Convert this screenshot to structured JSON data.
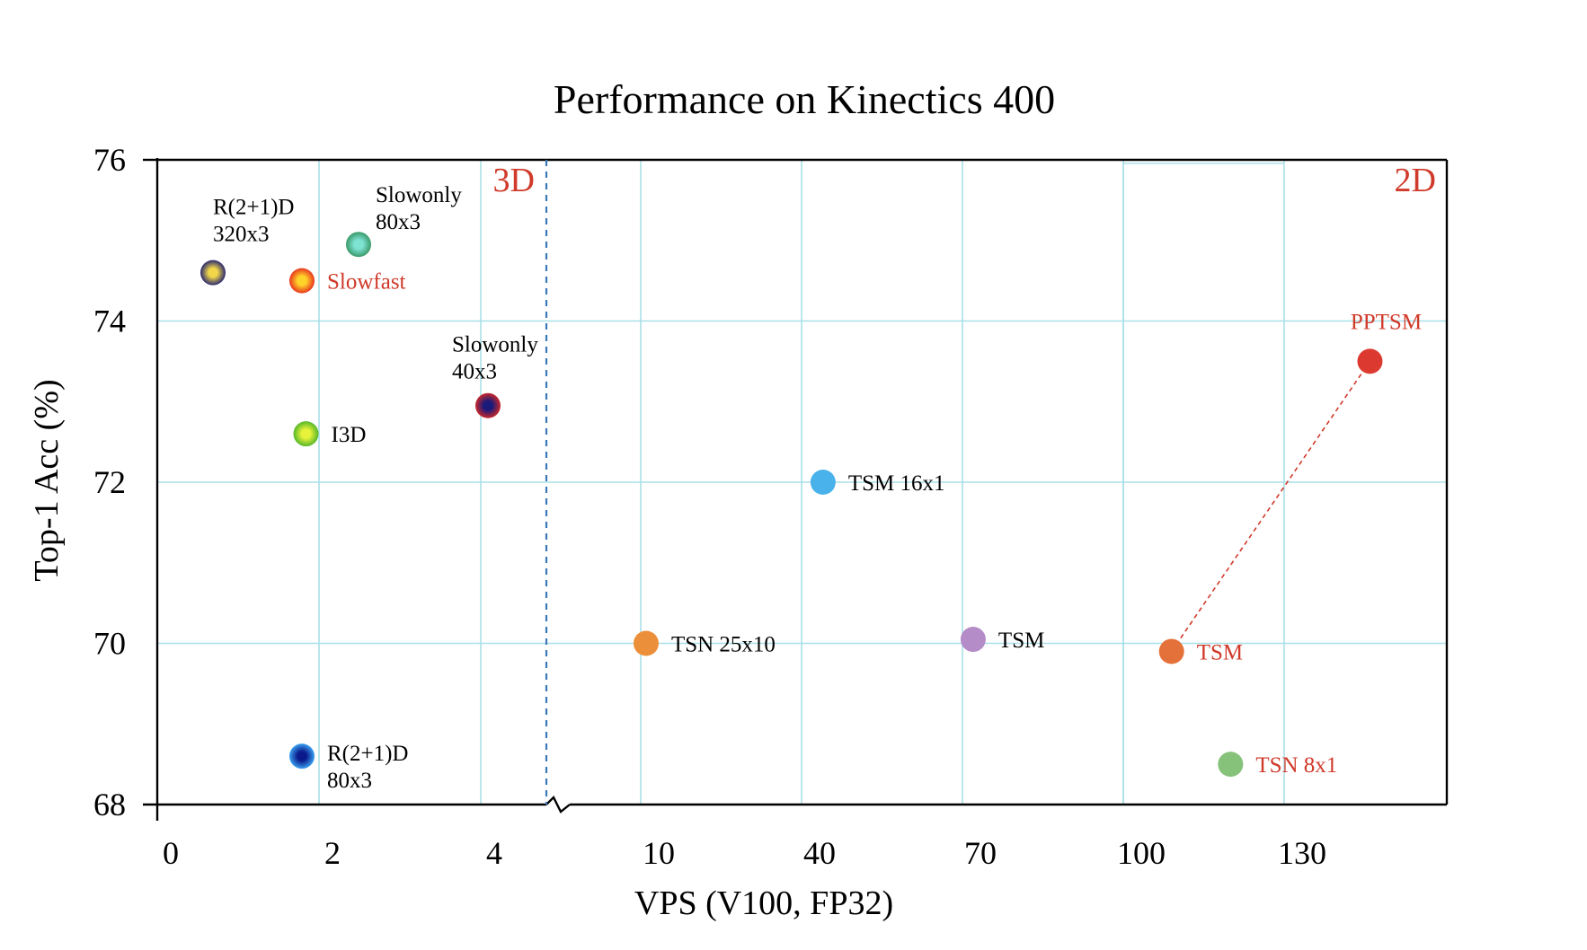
{
  "chart_data": {
    "type": "scatter",
    "title": "Performance on Kinectics 400",
    "xlabel": "VPS (V100, FP32)",
    "ylabel": "Top-1 Acc (%)",
    "ylim": [
      68,
      76
    ],
    "yticks": [
      "68",
      "70",
      "72",
      "74",
      "76"
    ],
    "x_axis_broken": true,
    "x_segments": [
      {
        "region": "3D",
        "ticks": [
          "0",
          "2",
          "4"
        ],
        "range": [
          0,
          4.8
        ]
      },
      {
        "region": "2D",
        "ticks": [
          "10",
          "40",
          "70",
          "100",
          "130"
        ],
        "range": [
          0,
          160
        ]
      }
    ],
    "region_labels": [
      "3D",
      "2D"
    ],
    "grid": true,
    "colors": {
      "grid": "#a8e0e8",
      "axis": "#000000",
      "divider": "#3b78b8",
      "highlight_text": "#d03a2a",
      "normal_text": "#000000",
      "connector": "#d03a2a"
    },
    "points": [
      {
        "label": "R(2+1)D\n320x3",
        "segment": "3D",
        "x": 0.5,
        "y": 74.6,
        "color": "#2a2a6e",
        "inner": "#f2d64a",
        "label_color": "#000000",
        "label_pos": "above"
      },
      {
        "label": "Slowfast",
        "segment": "3D",
        "x": 1.6,
        "y": 74.5,
        "color": "#e8371e",
        "inner": "#ffd42a",
        "label_color": "#d03a2a",
        "label_pos": "right"
      },
      {
        "label": "Slowonly\n80x3",
        "segment": "3D",
        "x": 2.3,
        "y": 74.95,
        "color": "#3a9a6a",
        "inner": "#7fe3d4",
        "label_color": "#000000",
        "label_pos": "above-right"
      },
      {
        "label": "I3D",
        "segment": "3D",
        "x": 1.65,
        "y": 72.6,
        "color": "#55b82a",
        "inner": "#e8f23a",
        "label_color": "#000000",
        "label_pos": "right"
      },
      {
        "label": "Slowonly\n40x3",
        "segment": "3D",
        "x": 3.9,
        "y": 72.95,
        "color": "#c8282a",
        "inner": "#1a1a7a",
        "label_color": "#000000",
        "label_pos": "above-left"
      },
      {
        "label": "R(2+1)D\n80x3",
        "segment": "3D",
        "x": 1.6,
        "y": 68.6,
        "color": "#3aa0f0",
        "inner": "#0a1a8a",
        "label_color": "#000000",
        "label_pos": "right-stack"
      },
      {
        "label": "TSN 25x10",
        "segment": "2D",
        "x": 11,
        "y": 70.0,
        "color": "#ec8f3a",
        "inner": "#ec8f3a",
        "label_color": "#000000",
        "label_pos": "right"
      },
      {
        "label": "TSM 16x1",
        "segment": "2D",
        "x": 44,
        "y": 72.0,
        "color": "#4ab2ea",
        "inner": "#4ab2ea",
        "label_color": "#000000",
        "label_pos": "right"
      },
      {
        "label": "TSM",
        "segment": "2D",
        "x": 72,
        "y": 70.05,
        "color": "#b48cc8",
        "inner": "#b48cc8",
        "label_color": "#000000",
        "label_pos": "right"
      },
      {
        "label": "TSM",
        "segment": "2D",
        "x": 109,
        "y": 69.9,
        "color": "#e4713a",
        "inner": "#e4713a",
        "label_color": "#d03a2a",
        "label_pos": "right"
      },
      {
        "label": "TSN 8x1",
        "segment": "2D",
        "x": 120,
        "y": 68.5,
        "color": "#86c27a",
        "inner": "#86c27a",
        "label_color": "#d03a2a",
        "label_pos": "right"
      },
      {
        "label": "PPTSM",
        "segment": "2D",
        "x": 146,
        "y": 73.5,
        "color": "#dc3a30",
        "inner": "#dc3a30",
        "label_color": "#d03a2a",
        "label_pos": "above"
      }
    ],
    "connectors": [
      {
        "from": "TSM",
        "from_index": 9,
        "to_index": 11,
        "style": "dashed"
      }
    ]
  }
}
